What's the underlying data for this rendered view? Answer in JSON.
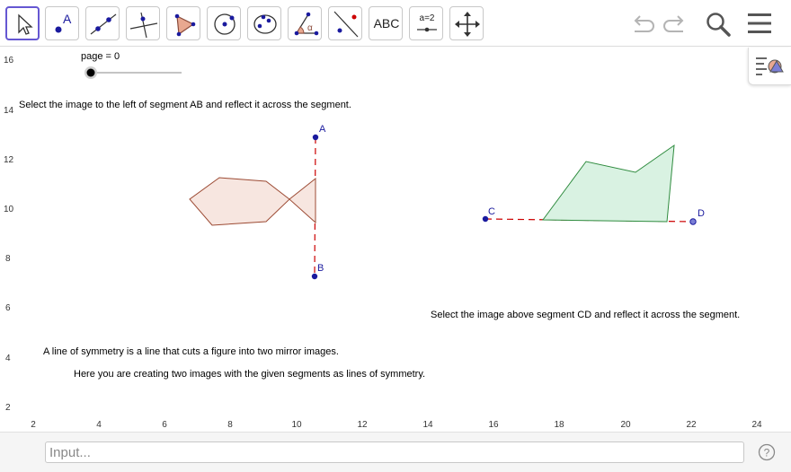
{
  "toolbar": {
    "tools": [
      {
        "name": "move-tool",
        "icon": "cursor-arrow-icon"
      },
      {
        "name": "point-tool",
        "icon": "point-icon",
        "glyph": "A"
      },
      {
        "name": "line-tool",
        "icon": "line-through-points-icon"
      },
      {
        "name": "perpendicular-line-tool",
        "icon": "perpendicular-line-icon"
      },
      {
        "name": "polygon-tool",
        "icon": "polygon-icon"
      },
      {
        "name": "circle-tool",
        "icon": "circle-center-point-icon"
      },
      {
        "name": "conic-tool",
        "icon": "ellipse-icon"
      },
      {
        "name": "angle-tool",
        "icon": "angle-icon",
        "glyph": "α"
      },
      {
        "name": "reflect-tool",
        "icon": "reflect-about-line-icon"
      },
      {
        "name": "text-tool",
        "icon": "text-icon",
        "label": "ABC"
      },
      {
        "name": "slider-tool",
        "icon": "slider-icon",
        "label": "a=2"
      },
      {
        "name": "move-graphics-view-tool",
        "icon": "move-arrows-icon"
      }
    ],
    "undo_icon": "undo-icon",
    "redo_icon": "redo-icon",
    "search_icon": "search-icon",
    "menu_icon": "hamburger-menu-icon"
  },
  "slider": {
    "label": "page = 0",
    "value": 0,
    "min": 0,
    "max": 1
  },
  "texts": {
    "instruction_ab": "Select the image to the left of segment AB and reflect it across the segment.",
    "instruction_cd": "Select the image above segment CD and reflect it across the segment.",
    "symmetry_def": "A line of symmetry is a line that cuts a figure into two mirror images.",
    "symmetry_task": "Here you are creating two images with the given segments as lines of symmetry."
  },
  "points": {
    "A": "A",
    "B": "B",
    "C": "C",
    "D": "D"
  },
  "axes": {
    "x_ticks": [
      "2",
      "4",
      "6",
      "8",
      "10",
      "12",
      "14",
      "16",
      "18",
      "20",
      "22",
      "24"
    ],
    "y_ticks": [
      "2",
      "4",
      "6",
      "8",
      "10",
      "12",
      "14",
      "16"
    ]
  },
  "colors": {
    "point": "#1a1a9e",
    "mirror_line": "#cc0000",
    "fish_fill": "#f7e6e0",
    "fish_stroke": "#9c4a33",
    "green_fill": "#d9f2e2",
    "green_stroke": "#2e8b3e",
    "active_tool": "#6557d2"
  },
  "input": {
    "placeholder": "Input..."
  },
  "help_icon": "help-icon",
  "style_bar_icon": "style-bar-icon"
}
